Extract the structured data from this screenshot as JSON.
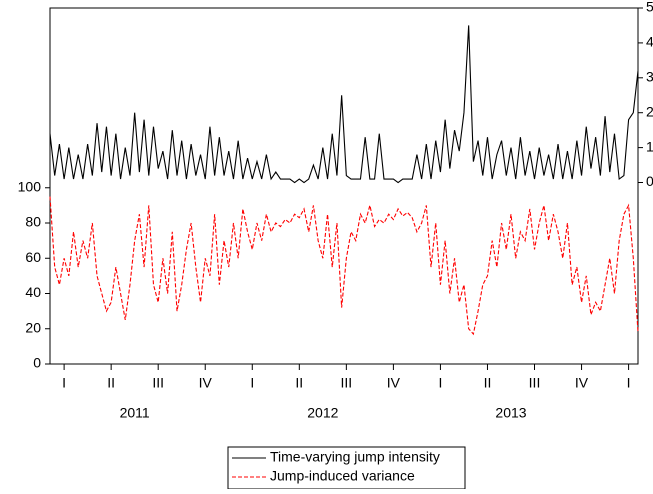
{
  "chart_data": {
    "type": "line",
    "x": [
      0.2,
      0.3,
      0.4,
      0.5,
      0.6,
      0.7,
      0.8,
      0.9,
      1.0,
      1.1,
      1.2,
      1.3,
      1.4,
      1.5,
      1.6,
      1.7,
      1.8,
      1.9,
      2.0,
      2.1,
      2.2,
      2.3,
      2.4,
      2.5,
      2.6,
      2.7,
      2.8,
      2.9,
      3.0,
      3.1,
      3.2,
      3.3,
      3.4,
      3.5,
      3.6,
      3.7,
      3.8,
      3.9,
      4.0,
      4.1,
      4.2,
      4.3,
      4.4,
      4.5,
      4.6,
      4.7,
      4.8,
      4.9,
      5.0,
      5.1,
      5.2,
      5.3,
      5.4,
      5.5,
      5.6,
      5.7,
      5.8,
      5.9,
      6.0,
      6.1,
      6.2,
      6.3,
      6.4,
      6.5,
      6.6,
      6.7,
      6.8,
      6.9,
      7.0,
      7.1,
      7.2,
      7.3,
      7.4,
      7.5,
      7.6,
      7.7,
      7.8,
      7.9,
      8.0,
      8.1,
      8.2,
      8.3,
      8.4,
      8.5,
      8.6,
      8.7,
      8.8,
      8.9,
      9.0,
      9.1,
      9.2,
      9.3,
      9.4,
      9.5,
      9.6,
      9.7,
      9.8,
      9.9,
      10.0,
      10.1,
      10.2,
      10.3,
      10.4,
      10.5,
      10.6,
      10.7,
      10.8,
      10.9,
      11.0,
      11.1,
      11.2,
      11.3,
      11.4,
      11.5,
      11.6,
      11.7,
      11.8,
      11.9,
      12.0,
      12.1,
      12.2,
      12.3,
      12.4,
      12.5,
      12.6,
      12.7
    ],
    "xlim": [
      0.2,
      12.7
    ],
    "xticks": [
      {
        "value": 0.5,
        "label": "I"
      },
      {
        "value": 1.5,
        "label": "II"
      },
      {
        "value": 2.5,
        "label": "III"
      },
      {
        "value": 3.5,
        "label": "IV"
      },
      {
        "value": 4.5,
        "label": "I"
      },
      {
        "value": 5.5,
        "label": "II"
      },
      {
        "value": 6.5,
        "label": "III"
      },
      {
        "value": 7.5,
        "label": "IV"
      },
      {
        "value": 8.5,
        "label": "I"
      },
      {
        "value": 9.5,
        "label": "II"
      },
      {
        "value": 10.5,
        "label": "III"
      },
      {
        "value": 11.5,
        "label": "IV"
      },
      {
        "value": 12.5,
        "label": "I"
      }
    ],
    "year_labels": [
      {
        "value": 2,
        "label": "2011"
      },
      {
        "value": 6,
        "label": "2012"
      },
      {
        "value": 10,
        "label": "2013"
      }
    ],
    "ylim": [
      0,
      202
    ],
    "yticks": [
      0,
      20,
      40,
      60,
      80,
      100
    ],
    "y2lim": [
      -5.2,
      5
    ],
    "y2ticks": [
      0,
      1,
      2,
      3,
      4,
      5
    ],
    "legend": "bottom",
    "series": [
      {
        "name": "Time-varying jump intensity",
        "color": "#000000",
        "dashed": false,
        "axis": "y2",
        "values": [
          1.4,
          0.2,
          1.1,
          0.1,
          1.0,
          0.1,
          0.8,
          0.1,
          1.1,
          0.2,
          1.7,
          0.3,
          1.6,
          0.2,
          1.4,
          0.1,
          1.0,
          0.2,
          2.0,
          0.3,
          1.8,
          0.2,
          1.6,
          0.4,
          0.9,
          0.1,
          1.5,
          0.2,
          1.2,
          0.1,
          1.1,
          0.2,
          0.8,
          0.1,
          1.6,
          0.2,
          1.3,
          0.2,
          0.9,
          0.1,
          1.2,
          0.1,
          0.7,
          0.1,
          0.6,
          0.1,
          0.8,
          0.1,
          0.3,
          0.1,
          0.1,
          0.1,
          0.0,
          0.1,
          0.0,
          0.1,
          0.5,
          0.1,
          1.0,
          0.1,
          1.4,
          0.2,
          2.5,
          0.2,
          0.1,
          0.1,
          0.1,
          1.3,
          0.1,
          0.1,
          1.4,
          0.1,
          0.1,
          0.1,
          0.0,
          0.1,
          0.1,
          0.1,
          0.8,
          0.1,
          1.1,
          0.1,
          1.2,
          0.3,
          1.8,
          0.4,
          1.5,
          0.9,
          2.0,
          4.5,
          0.6,
          1.2,
          0.2,
          1.3,
          0.1,
          0.8,
          1.2,
          0.2,
          1.0,
          0.1,
          1.3,
          0.2,
          0.9,
          0.1,
          1.0,
          0.2,
          0.8,
          0.1,
          1.1,
          0.1,
          0.9,
          0.1,
          1.2,
          0.2,
          1.6,
          0.4,
          1.3,
          0.2,
          1.9,
          0.3,
          1.4,
          0.1,
          0.2,
          1.8,
          2.0,
          3.2
        ]
      },
      {
        "name": "Jump-induced variance",
        "color": "#ff0000",
        "dashed": true,
        "values": [
          95,
          55,
          45,
          60,
          50,
          75,
          55,
          70,
          60,
          80,
          50,
          40,
          30,
          35,
          55,
          40,
          25,
          45,
          70,
          85,
          55,
          90,
          45,
          35,
          60,
          40,
          75,
          30,
          45,
          65,
          80,
          55,
          35,
          60,
          50,
          85,
          45,
          70,
          55,
          80,
          60,
          88,
          75,
          65,
          80,
          70,
          85,
          75,
          80,
          78,
          82,
          80,
          85,
          83,
          88,
          75,
          90,
          70,
          60,
          85,
          55,
          80,
          32,
          60,
          75,
          70,
          85,
          80,
          90,
          78,
          82,
          80,
          85,
          82,
          88,
          84,
          86,
          83,
          75,
          80,
          90,
          55,
          80,
          45,
          70,
          40,
          60,
          35,
          45,
          20,
          17,
          30,
          45,
          50,
          70,
          55,
          80,
          65,
          85,
          60,
          75,
          70,
          88,
          65,
          80,
          90,
          70,
          85,
          75,
          60,
          80,
          45,
          55,
          35,
          50,
          28,
          35,
          30,
          45,
          60,
          40,
          70,
          85,
          90,
          60,
          18
        ]
      }
    ]
  }
}
